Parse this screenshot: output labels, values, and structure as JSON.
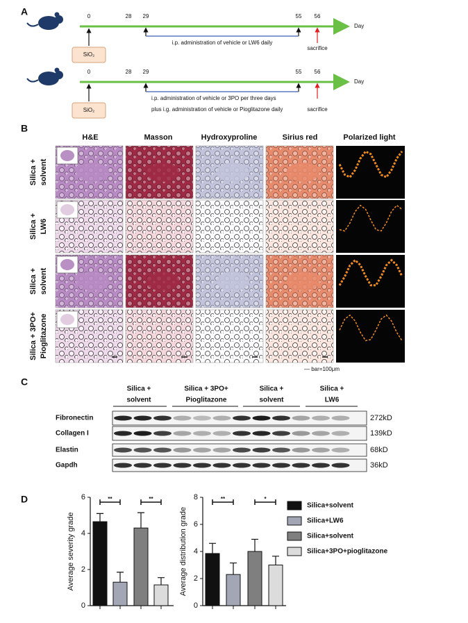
{
  "panel_a": {
    "label": "A",
    "timelines": [
      {
        "days": [
          0,
          28,
          29,
          55,
          56
        ],
        "day_label": "Day",
        "exposure": "SiO₂",
        "notes": [
          "i.p. administration of vehicle or LW6 daily"
        ],
        "end": "sacrifice"
      },
      {
        "days": [
          0,
          28,
          29,
          55,
          56
        ],
        "day_label": "Day",
        "exposure": "SiO₂",
        "notes": [
          "i.p. administration of vehicle or 3PO per three days",
          "plus i.g. administration of vehicle or Pioglitazone daily"
        ],
        "end": "sacrifice"
      }
    ]
  },
  "panel_b": {
    "label": "B",
    "columns": [
      "H&E",
      "Masson",
      "Hydroxyproline",
      "Sirius red",
      "Polarized light"
    ],
    "rows": [
      [
        "Silica +",
        "solvent"
      ],
      [
        "Silica +",
        "LW6"
      ],
      [
        "Silica +",
        "solvent"
      ],
      [
        "Silica + 3PO+",
        "Pioglitazone"
      ]
    ],
    "scale": "— bar=100μm"
  },
  "panel_c": {
    "label": "C",
    "groups": [
      [
        "Silica +",
        "solvent"
      ],
      [
        "Silica + 3PO+",
        "Pioglitazone"
      ],
      [
        "Silica +",
        "solvent"
      ],
      [
        "Silica +",
        "LW6"
      ]
    ],
    "proteins": [
      {
        "name": "Fibronectin",
        "size": "272kD"
      },
      {
        "name": "Collagen I",
        "size": "139kD"
      },
      {
        "name": "Elastin",
        "size": "68kD"
      },
      {
        "name": "Gapdh",
        "size": "36kD"
      }
    ]
  },
  "panel_d": {
    "label": "D"
  },
  "chart_data": [
    {
      "type": "bar",
      "y_label": "Average severity grade",
      "categories": [
        null,
        null,
        null,
        null
      ],
      "ylim": [
        0,
        6
      ],
      "yticks": [
        0,
        2,
        4,
        6
      ],
      "values": [
        4.65,
        1.3,
        4.3,
        1.15
      ],
      "errors": [
        0.45,
        0.55,
        0.85,
        0.4
      ],
      "colors": [
        "#111111",
        "#a3a7b5",
        "#7f7f7f",
        "#dcdcdc"
      ],
      "annotations": [
        "**",
        "**"
      ]
    },
    {
      "type": "bar",
      "y_label": "Average distribution grade",
      "categories": [
        null,
        null,
        null,
        null
      ],
      "ylim": [
        0,
        8
      ],
      "yticks": [
        0,
        2,
        4,
        6,
        8
      ],
      "values": [
        3.85,
        2.3,
        4.0,
        3.0
      ],
      "errors": [
        0.75,
        0.85,
        0.9,
        0.65
      ],
      "colors": [
        "#111111",
        "#a3a7b5",
        "#7f7f7f",
        "#dcdcdc"
      ],
      "annotations": [
        "**",
        "*"
      ],
      "legend": [
        "Silica+solvent",
        "Silica+LW6",
        "Silica+solvent",
        "Silica+3PO+pioglitazone"
      ]
    }
  ]
}
